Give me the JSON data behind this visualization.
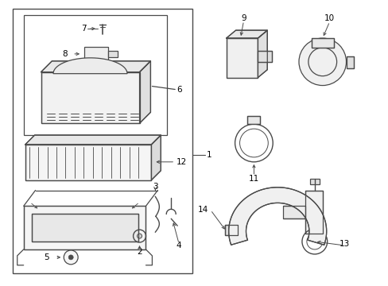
{
  "bg_color": "#ffffff",
  "line_color": "#4a4a4a",
  "label_color": "#000000",
  "figsize": [
    4.89,
    3.6
  ],
  "dpi": 100
}
